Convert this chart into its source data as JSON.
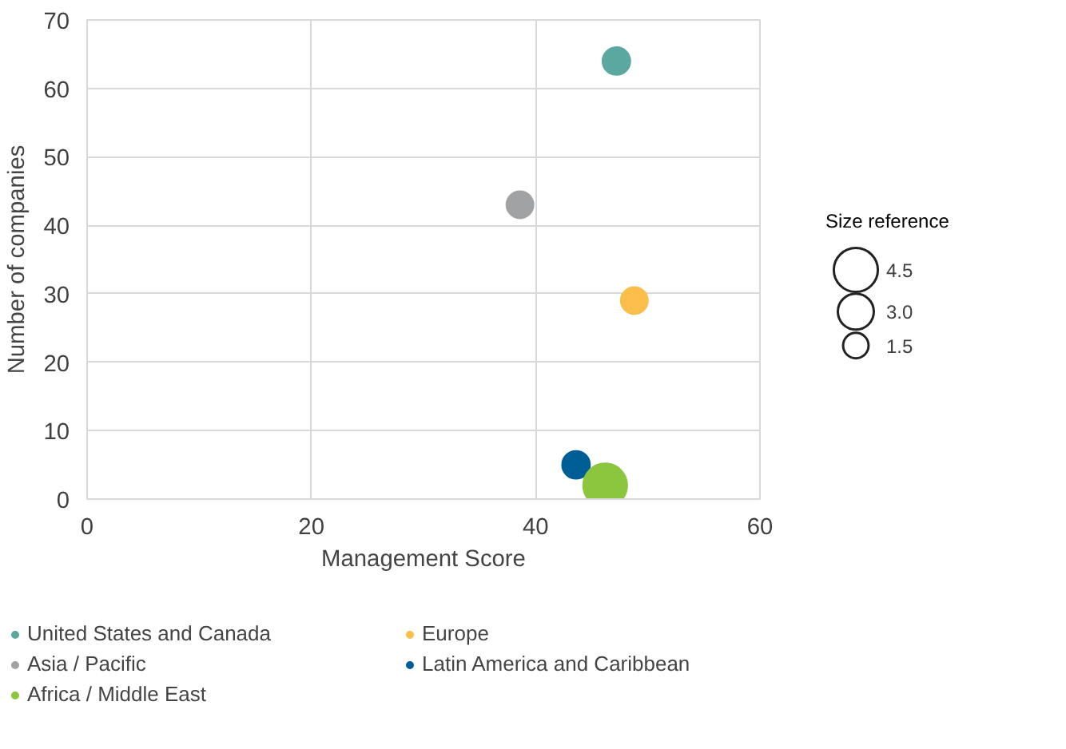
{
  "chart_data": {
    "type": "bubble",
    "xlabel": "Management Score",
    "ylabel": "Number of companies",
    "xlim": [
      0,
      60
    ],
    "xticks": [
      0,
      20,
      40,
      60
    ],
    "ylim": [
      0,
      70
    ],
    "yticks": [
      0,
      10,
      20,
      30,
      40,
      50,
      60,
      70
    ],
    "grid": true,
    "legend": "bottom",
    "marker": "circle",
    "size_legend": [
      {
        "value": 4.5,
        "label": "4.5"
      },
      {
        "value": 3,
        "label": "3.0"
      },
      {
        "value": 1.5,
        "label": "1.5"
      }
    ],
    "annotations": [
      "Size reference"
    ],
    "series": [
      {
        "name": "United States and Canada",
        "color": "#5ba8a0",
        "x": [
          47.2
        ],
        "values": [
          64
        ],
        "sizes": [
          1.8
        ]
      },
      {
        "name": "Europe",
        "color": "#fbbe4b",
        "x": [
          48.8
        ],
        "values": [
          29
        ],
        "sizes": [
          1.7
        ]
      },
      {
        "name": "Asia / Pacific",
        "color": "#a0a2a4",
        "x": [
          38.6
        ],
        "values": [
          43
        ],
        "sizes": [
          1.7
        ]
      },
      {
        "name": "Latin America and Caribbean",
        "color": "#005e96",
        "x": [
          43.6
        ],
        "values": [
          5
        ],
        "sizes": [
          1.8
        ]
      },
      {
        "name": "Africa / Middle East",
        "color": "#8cc63f",
        "x": [
          46.2
        ],
        "values": [
          2
        ],
        "sizes": [
          4.5
        ]
      }
    ]
  }
}
